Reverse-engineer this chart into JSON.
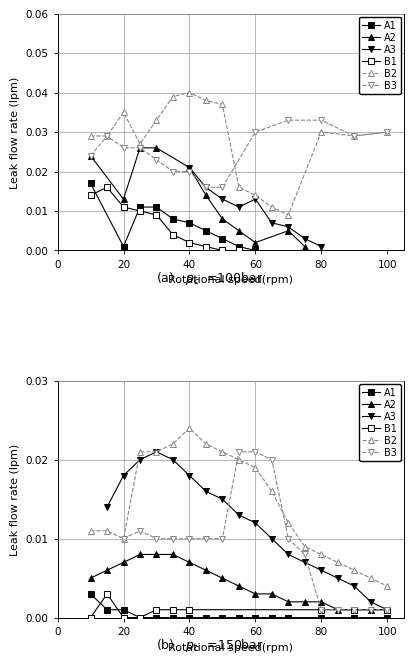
{
  "chart_a": {
    "caption": "(a)   $p_c$  =100bar",
    "ylim": [
      0.0,
      0.06
    ],
    "yticks": [
      0.0,
      0.01,
      0.02,
      0.03,
      0.04,
      0.05,
      0.06
    ],
    "ylabel": "Leak flow rate (lpm)",
    "xlabel": "Rotational speed(rpm)",
    "series": {
      "A1": {
        "x": [
          10,
          20,
          25,
          30,
          35,
          40,
          45,
          50,
          55,
          60
        ],
        "y": [
          0.017,
          0.001,
          0.011,
          0.011,
          0.008,
          0.007,
          0.005,
          0.003,
          0.001,
          0.0
        ]
      },
      "A2": {
        "x": [
          10,
          20,
          25,
          30,
          40,
          45,
          50,
          55,
          60,
          70,
          75
        ],
        "y": [
          0.024,
          0.013,
          0.026,
          0.026,
          0.021,
          0.014,
          0.008,
          0.005,
          0.002,
          0.005,
          0.001
        ]
      },
      "A3": {
        "x": [
          40,
          45,
          50,
          55,
          60,
          65,
          70,
          75,
          80
        ],
        "y": [
          0.021,
          0.016,
          0.013,
          0.011,
          0.013,
          0.007,
          0.006,
          0.003,
          0.001
        ]
      },
      "B1": {
        "x": [
          10,
          15,
          20,
          25,
          30,
          35,
          40,
          45,
          50,
          55
        ],
        "y": [
          0.014,
          0.016,
          0.011,
          0.01,
          0.009,
          0.004,
          0.002,
          0.001,
          0.0,
          0.0
        ]
      },
      "B2": {
        "x": [
          10,
          15,
          20,
          25,
          30,
          35,
          40,
          45,
          50,
          55,
          60,
          65,
          70,
          80,
          90,
          100
        ],
        "y": [
          0.029,
          0.029,
          0.035,
          0.027,
          0.033,
          0.039,
          0.04,
          0.038,
          0.037,
          0.016,
          0.014,
          0.011,
          0.009,
          0.03,
          0.029,
          0.03
        ]
      },
      "B3": {
        "x": [
          10,
          15,
          20,
          25,
          30,
          35,
          40,
          45,
          50,
          60,
          70,
          80,
          90,
          100
        ],
        "y": [
          0.024,
          0.029,
          0.026,
          0.026,
          0.023,
          0.02,
          0.02,
          0.016,
          0.016,
          0.03,
          0.033,
          0.033,
          0.029,
          0.03
        ]
      }
    }
  },
  "chart_b": {
    "caption": "(b)   $p_c$  =150bar",
    "ylim": [
      0.0,
      0.03
    ],
    "yticks": [
      0.0,
      0.01,
      0.02,
      0.03
    ],
    "ylabel": "Leak flow rate (lpm)",
    "xlabel": "Rotational speed(rpm)",
    "series": {
      "A1": {
        "x": [
          10,
          15,
          20,
          25,
          30,
          35,
          40,
          45,
          50,
          55,
          60,
          65,
          70,
          80,
          90,
          100
        ],
        "y": [
          0.003,
          0.001,
          0.001,
          0.0,
          0.0,
          0.0,
          0.0,
          0.0,
          0.0,
          0.0,
          0.0,
          0.0,
          0.0,
          0.0,
          0.0,
          0.0
        ]
      },
      "A2": {
        "x": [
          10,
          15,
          20,
          25,
          30,
          35,
          40,
          45,
          50,
          55,
          60,
          65,
          70,
          75,
          80,
          85,
          90,
          95,
          100
        ],
        "y": [
          0.005,
          0.006,
          0.007,
          0.008,
          0.008,
          0.008,
          0.007,
          0.006,
          0.005,
          0.004,
          0.003,
          0.003,
          0.002,
          0.002,
          0.002,
          0.001,
          0.001,
          0.001,
          0.001
        ]
      },
      "A3": {
        "x": [
          15,
          20,
          25,
          30,
          35,
          40,
          45,
          50,
          55,
          60,
          65,
          70,
          75,
          80,
          85,
          90,
          95,
          100
        ],
        "y": [
          0.014,
          0.018,
          0.02,
          0.021,
          0.02,
          0.018,
          0.016,
          0.015,
          0.013,
          0.012,
          0.01,
          0.008,
          0.007,
          0.006,
          0.005,
          0.004,
          0.002,
          0.001
        ]
      },
      "B1": {
        "x": [
          10,
          15,
          20,
          25,
          30,
          35,
          40,
          80,
          90,
          100
        ],
        "y": [
          0.0,
          0.003,
          0.0,
          0.0,
          0.001,
          0.001,
          0.001,
          0.001,
          0.001,
          0.001
        ]
      },
      "B2": {
        "x": [
          10,
          15,
          20,
          25,
          30,
          35,
          40,
          45,
          50,
          55,
          60,
          65,
          70,
          75,
          80,
          85,
          90,
          95,
          100
        ],
        "y": [
          0.011,
          0.011,
          0.01,
          0.021,
          0.021,
          0.022,
          0.024,
          0.022,
          0.021,
          0.02,
          0.019,
          0.016,
          0.012,
          0.009,
          0.008,
          0.007,
          0.006,
          0.005,
          0.004
        ]
      },
      "B3": {
        "x": [
          20,
          25,
          30,
          35,
          40,
          45,
          50,
          55,
          60,
          65,
          70,
          75,
          80,
          85,
          90,
          95,
          100
        ],
        "y": [
          0.01,
          0.011,
          0.01,
          0.01,
          0.01,
          0.01,
          0.01,
          0.021,
          0.021,
          0.02,
          0.01,
          0.008,
          0.001,
          0.001,
          0.001,
          0.001,
          0.001
        ]
      }
    }
  },
  "legend_order": [
    "A1",
    "A2",
    "A3",
    "B1",
    "B2",
    "B3"
  ],
  "xlim": [
    0,
    105
  ],
  "xticks": [
    0,
    20,
    40,
    60,
    80,
    100
  ],
  "vlines": [
    20,
    40,
    60
  ],
  "grid_color": "#aaaaaa"
}
